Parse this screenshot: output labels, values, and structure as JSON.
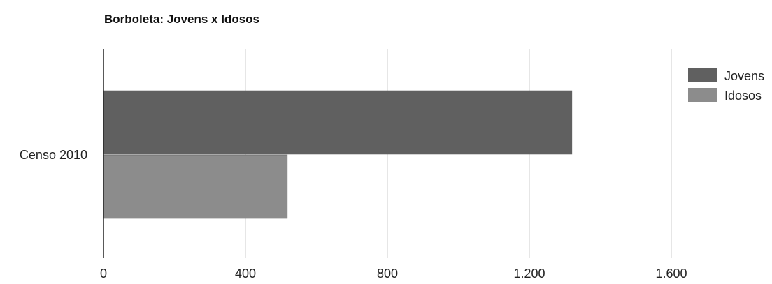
{
  "chart_data": {
    "type": "bar",
    "orientation": "horizontal",
    "title": "Borboleta: Jovens x Idosos",
    "categories": [
      "Censo 2010"
    ],
    "series": [
      {
        "name": "Jovens",
        "values": [
          1320
        ],
        "color": "#606060"
      },
      {
        "name": "Idosos",
        "values": [
          518
        ],
        "color": "#8c8c8c"
      }
    ],
    "xlim": [
      0,
      1600
    ],
    "ticks": [
      {
        "value": 0,
        "label": "0"
      },
      {
        "value": 400,
        "label": "400"
      },
      {
        "value": 800,
        "label": "800"
      },
      {
        "value": 1200,
        "label": "1.200"
      },
      {
        "value": 1600,
        "label": "1.600"
      }
    ],
    "grid": true,
    "legend_position": "right"
  }
}
